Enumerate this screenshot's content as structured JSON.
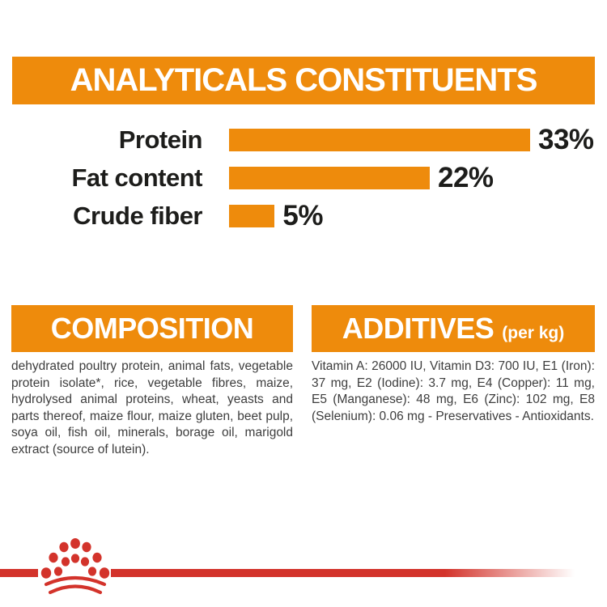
{
  "colors": {
    "orange": "#EE8B0C",
    "red": "#D3332B",
    "heading_text": "#FFFFFF",
    "chart_text": "#1d1d1b",
    "body_text": "#3d3d3d"
  },
  "header": {
    "title": "ANALYTICALS CONSTITUENTS"
  },
  "chart_data": {
    "type": "bar",
    "orientation": "horizontal",
    "title": "ANALYTICALS CONSTITUENTS",
    "categories": [
      "Protein",
      "Fat content",
      "Crude fiber"
    ],
    "values": [
      33,
      22,
      5
    ],
    "value_labels": [
      "33%",
      "22%",
      "5%"
    ],
    "unit": "%",
    "xlim": [
      0,
      33
    ],
    "grid": false,
    "legend": false,
    "bar_color": "#EE8B0C"
  },
  "composition": {
    "title": "COMPOSITION",
    "body": "dehydrated poultry protein, animal fats, vegetable protein isolate*, rice, vegetable fibres, maize, hydrolysed animal proteins, wheat, yeasts and parts thereof, maize flour, maize gluten, beet pulp, soya oil, fish oil, minerals, borage oil, marigold extract (source of lutein)."
  },
  "additives": {
    "title": "ADDITIVES",
    "title_suffix": "(per kg)",
    "body": "Vitamin A: 26000 IU, Vitamin D3: 700 IU, E1 (Iron): 37 mg, E2 (Iodine): 3.7 mg, E4 (Copper): 11 mg, E5 (Manganese): 48 mg, E6 (Zinc): 102 mg, E8 (Selenium): 0.06 mg - Preservatives - Antioxidants."
  },
  "footer": {
    "logo": "royal-canin-crown-logo"
  }
}
